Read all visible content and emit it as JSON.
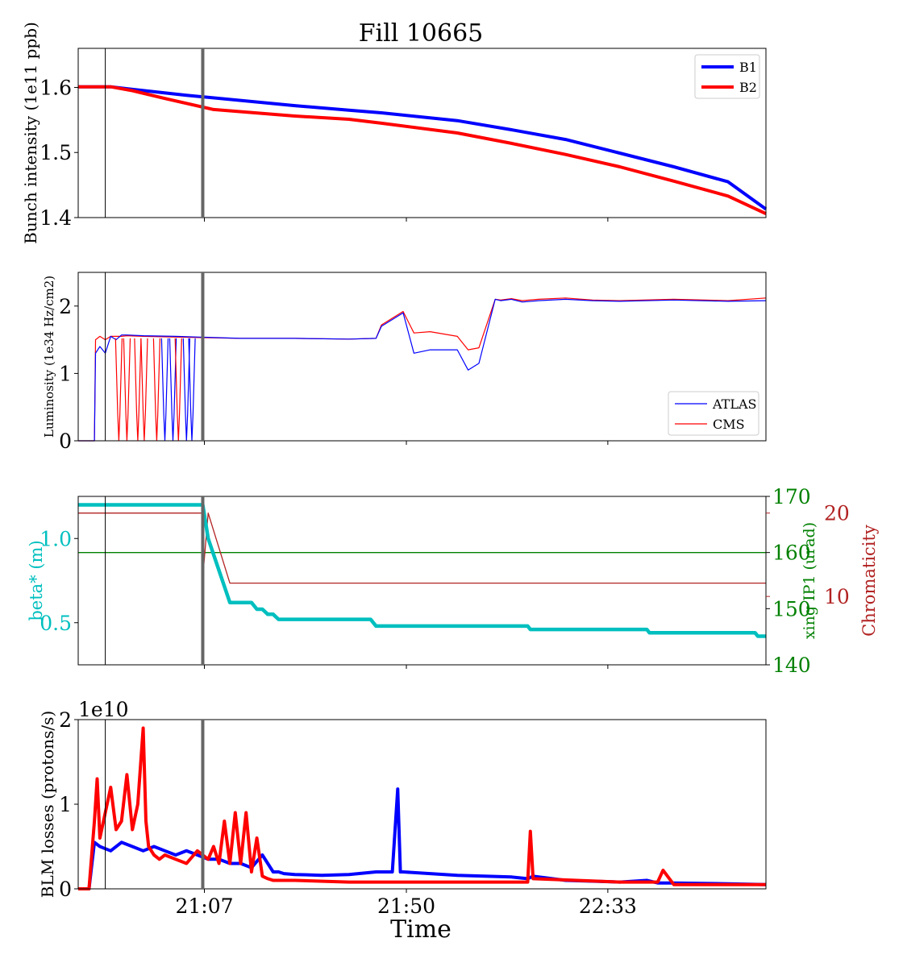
{
  "figure": {
    "title": "Fill 10665",
    "xlabel": "Time"
  },
  "colors": {
    "b1": "#0000ff",
    "b2": "#ff0000",
    "atlas": "#0000ff",
    "cms": "#ff0000",
    "beta": "#00bfbf",
    "xing": "#008000",
    "chroma": "#b22222",
    "marker": "#666666"
  },
  "chart_data": [
    {
      "id": "intensity",
      "type": "line",
      "ylabel": "Bunch intensity (1e11 ppb)",
      "ylim": [
        1.4,
        1.66
      ],
      "yticks": [
        "1.4",
        "1.5",
        "1.6"
      ],
      "legend": {
        "placement": "upper right",
        "entries": [
          "B1",
          "B2"
        ]
      },
      "series": [
        {
          "name": "B1",
          "x": [
            0,
            6,
            10,
            20,
            40,
            50,
            56,
            70,
            80,
            90,
            100,
            110,
            120,
            127
          ],
          "values": [
            1.601,
            1.601,
            1.597,
            1.588,
            1.572,
            1.565,
            1.561,
            1.549,
            1.535,
            1.52,
            1.499,
            1.478,
            1.455,
            1.413
          ]
        },
        {
          "name": "B2",
          "x": [
            0,
            6,
            10,
            16,
            25,
            40,
            50,
            56,
            70,
            80,
            90,
            100,
            110,
            120,
            127
          ],
          "values": [
            1.601,
            1.601,
            1.595,
            1.583,
            1.566,
            1.556,
            1.551,
            1.545,
            1.53,
            1.514,
            1.497,
            1.478,
            1.456,
            1.433,
            1.406
          ]
        }
      ]
    },
    {
      "id": "luminosity",
      "type": "line",
      "ylabel": "Luminosity (1e34 Hz/cm2)",
      "ylim": [
        0,
        2.5
      ],
      "yticks": [
        "0",
        "1",
        "2"
      ],
      "legend": {
        "placement": "lower right",
        "entries": [
          "ATLAS",
          "CMS"
        ]
      },
      "series": [
        {
          "name": "ATLAS",
          "x": [
            0,
            3,
            3.2,
            4,
            5,
            6,
            7,
            8,
            9,
            12,
            18,
            30,
            40,
            50,
            55,
            56,
            60,
            62,
            65,
            70,
            72,
            74,
            77,
            78,
            80,
            82,
            85,
            90,
            95,
            100,
            110,
            120,
            127
          ],
          "values": [
            0,
            0,
            1.3,
            1.4,
            1.3,
            1.55,
            1.5,
            1.57,
            1.57,
            1.56,
            1.55,
            1.52,
            1.52,
            1.51,
            1.52,
            1.7,
            1.9,
            1.3,
            1.35,
            1.35,
            1.05,
            1.15,
            2.1,
            2.08,
            2.1,
            2.06,
            2.08,
            2.1,
            2.08,
            2.07,
            2.09,
            2.07,
            2.08
          ]
        },
        {
          "name": "CMS",
          "x": [
            0,
            3,
            3.2,
            4,
            5,
            6,
            7,
            8,
            9,
            12,
            18,
            30,
            40,
            50,
            55,
            56,
            60,
            62,
            65,
            70,
            72,
            74,
            77,
            78,
            80,
            82,
            85,
            90,
            95,
            100,
            110,
            120,
            127
          ],
          "values": [
            0,
            0,
            1.5,
            1.55,
            1.5,
            1.55,
            1.55,
            1.55,
            1.56,
            1.55,
            1.54,
            1.52,
            1.52,
            1.51,
            1.52,
            1.72,
            1.92,
            1.6,
            1.62,
            1.55,
            1.35,
            1.38,
            2.1,
            2.09,
            2.11,
            2.08,
            2.1,
            2.12,
            2.09,
            2.08,
            2.1,
            2.08,
            2.12
          ]
        }
      ]
    },
    {
      "id": "optics",
      "type": "line",
      "ylabel": "beta* (m)",
      "ylabel_right": "xing IP1 (urad)",
      "ylabel_right2": "Chromaticity",
      "ylim": [
        0.25,
        1.25
      ],
      "yticks": [
        "0.5",
        "1.0"
      ],
      "ylim_right": [
        140,
        170
      ],
      "yticks_right": [
        "140",
        "150",
        "160",
        "170"
      ],
      "ylim_right2": [
        1.8,
        22
      ],
      "yticks_right2": [
        "10",
        "20"
      ],
      "series": [
        {
          "name": "beta*",
          "axis": "left",
          "x": [
            0,
            23,
            24,
            28,
            32,
            33,
            34,
            35,
            36,
            37,
            38,
            54,
            55,
            83,
            83.5,
            105,
            105.5,
            125,
            125.5,
            127
          ],
          "values": [
            1.2,
            1.2,
            1.0,
            0.62,
            0.62,
            0.58,
            0.58,
            0.55,
            0.55,
            0.52,
            0.52,
            0.52,
            0.48,
            0.48,
            0.46,
            0.46,
            0.44,
            0.44,
            0.42,
            0.42
          ]
        },
        {
          "name": "xing IP1",
          "axis": "right",
          "x": [
            0,
            127
          ],
          "values": [
            160,
            160
          ]
        },
        {
          "name": "Chromaticity",
          "axis": "right2",
          "x": [
            0,
            22.9,
            23,
            24,
            28,
            127
          ],
          "values": [
            20,
            20,
            12.3,
            20,
            11.6,
            11.6
          ]
        }
      ]
    },
    {
      "id": "blm",
      "type": "line",
      "ylabel": "BLM losses (protons/s)",
      "offset_text": "1e10",
      "ylim": [
        0,
        2
      ],
      "yticks": [
        "0",
        "1",
        "2"
      ],
      "xticks": [
        "21:07",
        "21:50",
        "22:33"
      ],
      "series": [
        {
          "name": "B1",
          "x": [
            0,
            2,
            3,
            4,
            6,
            8,
            10,
            12,
            14,
            16,
            18,
            20,
            22,
            24,
            26,
            28,
            30,
            32,
            34,
            35,
            36,
            37,
            38,
            40,
            45,
            50,
            55,
            58,
            59,
            59.5,
            60,
            65,
            70,
            80,
            83,
            84,
            90,
            100,
            105,
            107,
            110,
            120,
            127
          ],
          "values": [
            0,
            0,
            0.55,
            0.5,
            0.45,
            0.55,
            0.5,
            0.45,
            0.5,
            0.45,
            0.4,
            0.45,
            0.4,
            0.35,
            0.35,
            0.3,
            0.3,
            0.25,
            0.4,
            0.3,
            0.2,
            0.2,
            0.18,
            0.17,
            0.16,
            0.17,
            0.2,
            0.2,
            1.18,
            0.2,
            0.2,
            0.18,
            0.16,
            0.14,
            0.12,
            0.15,
            0.1,
            0.08,
            0.1,
            0.07,
            0.07,
            0.06,
            0.05
          ]
        },
        {
          "name": "B2",
          "x": [
            0,
            2,
            3,
            3.5,
            4,
            5,
            6,
            7,
            8,
            9,
            10,
            11,
            12,
            12.5,
            13,
            14,
            15,
            16,
            18,
            20,
            22,
            24,
            25,
            26,
            27,
            28,
            29,
            30,
            31,
            32,
            33,
            34,
            35,
            36,
            40,
            50,
            55,
            83,
            83.5,
            84,
            100,
            107,
            108,
            110,
            127
          ],
          "values": [
            0,
            0,
            0.8,
            1.3,
            0.6,
            0.9,
            1.2,
            0.7,
            0.8,
            1.35,
            0.7,
            1.0,
            1.9,
            0.8,
            0.5,
            0.4,
            0.35,
            0.4,
            0.35,
            0.3,
            0.45,
            0.35,
            0.5,
            0.3,
            0.8,
            0.3,
            0.9,
            0.3,
            0.9,
            0.2,
            0.6,
            0.15,
            0.12,
            0.1,
            0.1,
            0.08,
            0.08,
            0.08,
            0.68,
            0.12,
            0.08,
            0.08,
            0.22,
            0.05,
            0.05
          ]
        }
      ]
    }
  ]
}
